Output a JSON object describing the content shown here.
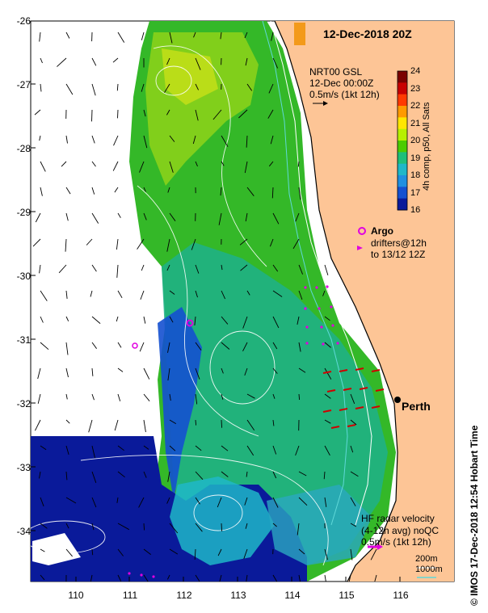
{
  "title": "12-Dec-2018 20Z",
  "product": {
    "name": "NRT00 GSL",
    "time": "12-Dec 00:00Z",
    "scale": "0.5m/s (1kt 12h)"
  },
  "colorbar": {
    "label": "4h comp, p50, All Sats",
    "ticks": [
      "24",
      "23",
      "22",
      "21",
      "20",
      "19",
      "18",
      "17",
      "16"
    ],
    "colors": [
      "#7a0000",
      "#c80000",
      "#ff3a00",
      "#ff9a00",
      "#ffe600",
      "#b8f000",
      "#4ccc00",
      "#1fbf7a",
      "#1fb7c8",
      "#1f8fe0",
      "#1450d0",
      "#0a1a9a"
    ]
  },
  "legend_argo": {
    "label": "Argo",
    "drifters_line1": "drifters@12h",
    "drifters_line2": "to 13/12 12Z",
    "color": "#e000e0"
  },
  "city": {
    "name": "Perth"
  },
  "hf_radar": {
    "line1": "HF radar velocity",
    "line2": "(4-12h avg) noQC",
    "scale": "0.5m/s (1kt 12h)"
  },
  "isobaths": {
    "a": "200m",
    "b": "1000m"
  },
  "axes": {
    "lat_ticks": [
      "-26",
      "-27",
      "-28",
      "-29",
      "-30",
      "-31",
      "-32",
      "-33",
      "-34"
    ],
    "lon_ticks": [
      "110",
      "111",
      "112",
      "113",
      "114",
      "115",
      "116"
    ]
  },
  "credit": "© IMOS 17-Dec-2018 12:54 Hobart Time",
  "colors": {
    "land": "#fdc596",
    "sst_green": "#34b828",
    "deep_blue": "#0a1a9a",
    "radar": "#d00000"
  }
}
